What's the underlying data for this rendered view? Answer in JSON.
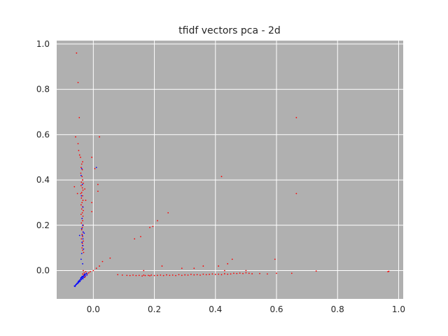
{
  "chart_data": {
    "type": "scatter",
    "title": "tfidf vectors pca - 2d",
    "xlabel": "",
    "ylabel": "",
    "xlim": [
      -0.12,
      1.015
    ],
    "ylim": [
      -0.125,
      1.015
    ],
    "grid": true,
    "legend": "none",
    "background_color": "#b0b0b0",
    "grid_color": "#ffffff",
    "x_ticks": [
      0.0,
      0.2,
      0.4,
      0.6,
      0.8,
      1.0
    ],
    "x_tick_labels": [
      "0.0",
      "0.2",
      "0.4",
      "0.6",
      "0.8",
      "1.0"
    ],
    "y_ticks": [
      0.0,
      0.2,
      0.4,
      0.6,
      0.8,
      1.0
    ],
    "y_tick_labels": [
      "0.0",
      "0.2",
      "0.4",
      "0.6",
      "0.8",
      "1.0"
    ],
    "series": [
      {
        "color": "#ff0000",
        "points": [
          [
            -0.055,
            0.96
          ],
          [
            -0.05,
            0.83
          ],
          [
            -0.046,
            0.675
          ],
          [
            -0.058,
            0.59
          ],
          [
            -0.05,
            0.56
          ],
          [
            -0.048,
            0.53
          ],
          [
            -0.045,
            0.51
          ],
          [
            -0.042,
            0.5
          ],
          [
            -0.035,
            0.48
          ],
          [
            -0.038,
            0.47
          ],
          [
            -0.04,
            0.455
          ],
          [
            -0.036,
            0.445
          ],
          [
            -0.041,
            0.43
          ],
          [
            -0.037,
            0.415
          ],
          [
            -0.035,
            0.4
          ],
          [
            -0.039,
            0.39
          ],
          [
            -0.033,
            0.385
          ],
          [
            -0.04,
            0.375
          ],
          [
            -0.036,
            0.365
          ],
          [
            -0.034,
            0.355
          ],
          [
            -0.038,
            0.345
          ],
          [
            -0.041,
            0.34
          ],
          [
            -0.035,
            0.33
          ],
          [
            -0.039,
            0.32
          ],
          [
            -0.034,
            0.31
          ],
          [
            -0.037,
            0.3
          ],
          [
            -0.04,
            0.29
          ],
          [
            -0.035,
            0.282
          ],
          [
            -0.038,
            0.272
          ],
          [
            -0.033,
            0.265
          ],
          [
            -0.036,
            0.255
          ],
          [
            -0.04,
            0.248
          ],
          [
            -0.034,
            0.24
          ],
          [
            -0.037,
            0.23
          ],
          [
            -0.035,
            0.22
          ],
          [
            -0.039,
            0.21
          ],
          [
            -0.033,
            0.2
          ],
          [
            -0.036,
            0.19
          ],
          [
            -0.038,
            0.18
          ],
          [
            -0.034,
            0.17
          ],
          [
            -0.037,
            0.16
          ],
          [
            -0.035,
            0.15
          ],
          [
            -0.039,
            0.14
          ],
          [
            -0.033,
            0.13
          ],
          [
            -0.036,
            0.12
          ],
          [
            -0.034,
            0.11
          ],
          [
            -0.037,
            0.1
          ],
          [
            -0.035,
            0.09
          ],
          [
            -0.032,
            0.08
          ],
          [
            -0.062,
            0.37
          ],
          [
            -0.052,
            0.34
          ],
          [
            -0.028,
            0.36
          ],
          [
            -0.025,
            0.31
          ],
          [
            -0.005,
            0.5
          ],
          [
            -0.005,
            0.3
          ],
          [
            -0.005,
            0.26
          ],
          [
            0.015,
            0.38
          ],
          [
            0.015,
            0.35
          ],
          [
            0.02,
            0.59
          ],
          [
            0.005,
            0.45
          ],
          [
            -0.03,
            -0.01
          ],
          [
            -0.032,
            -0.02
          ],
          [
            -0.028,
            -0.03
          ],
          [
            -0.035,
            -0.015
          ],
          [
            -0.025,
            -0.005
          ],
          [
            -0.033,
            0.0
          ],
          [
            -0.027,
            -0.025
          ],
          [
            -0.02,
            -0.015
          ],
          [
            -0.015,
            -0.01
          ],
          [
            -0.01,
            -0.005
          ],
          [
            0.0,
            0.0
          ],
          [
            0.01,
            0.01
          ],
          [
            0.02,
            0.02
          ],
          [
            0.03,
            0.04
          ],
          [
            0.055,
            0.055
          ],
          [
            0.08,
            -0.018
          ],
          [
            0.095,
            -0.02
          ],
          [
            0.11,
            -0.021
          ],
          [
            0.12,
            -0.022
          ],
          [
            0.13,
            -0.02
          ],
          [
            0.14,
            -0.022
          ],
          [
            0.15,
            -0.021
          ],
          [
            0.16,
            -0.024
          ],
          [
            0.165,
            -0.02
          ],
          [
            0.17,
            -0.022
          ],
          [
            0.18,
            -0.021
          ],
          [
            0.185,
            -0.023
          ],
          [
            0.19,
            -0.02
          ],
          [
            0.2,
            -0.022
          ],
          [
            0.21,
            -0.021
          ],
          [
            0.22,
            -0.02
          ],
          [
            0.23,
            -0.022
          ],
          [
            0.24,
            -0.019
          ],
          [
            0.25,
            -0.021
          ],
          [
            0.26,
            -0.02
          ],
          [
            0.27,
            -0.022
          ],
          [
            0.28,
            -0.018
          ],
          [
            0.29,
            -0.021
          ],
          [
            0.3,
            -0.019
          ],
          [
            0.31,
            -0.02
          ],
          [
            0.32,
            -0.017
          ],
          [
            0.33,
            -0.019
          ],
          [
            0.34,
            -0.018
          ],
          [
            0.35,
            -0.02
          ],
          [
            0.36,
            -0.016
          ],
          [
            0.37,
            -0.018
          ],
          [
            0.38,
            -0.017
          ],
          [
            0.39,
            -0.015
          ],
          [
            0.4,
            -0.017
          ],
          [
            0.41,
            -0.016
          ],
          [
            0.42,
            -0.018
          ],
          [
            0.43,
            -0.014
          ],
          [
            0.44,
            -0.016
          ],
          [
            0.45,
            -0.015
          ],
          [
            0.46,
            -0.012
          ],
          [
            0.47,
            -0.013
          ],
          [
            0.48,
            -0.011
          ],
          [
            0.49,
            -0.013
          ],
          [
            0.5,
            -0.01
          ],
          [
            0.51,
            -0.012
          ],
          [
            0.52,
            -0.014
          ],
          [
            0.545,
            -0.013
          ],
          [
            0.57,
            -0.015
          ],
          [
            0.6,
            -0.012
          ],
          [
            0.65,
            -0.012
          ],
          [
            0.73,
            -0.002
          ],
          [
            0.965,
            -0.005
          ],
          [
            0.968,
            -0.003
          ],
          [
            0.135,
            0.14
          ],
          [
            0.155,
            0.15
          ],
          [
            0.185,
            0.19
          ],
          [
            0.195,
            0.195
          ],
          [
            0.21,
            0.22
          ],
          [
            0.245,
            0.255
          ],
          [
            0.42,
            0.415
          ],
          [
            0.665,
            0.675
          ],
          [
            0.665,
            0.34
          ],
          [
            0.595,
            0.05
          ],
          [
            0.455,
            0.05
          ],
          [
            0.44,
            0.03
          ],
          [
            0.36,
            0.02
          ],
          [
            0.33,
            0.01
          ],
          [
            0.29,
            0.01
          ],
          [
            0.225,
            0.02
          ],
          [
            0.165,
            0.0
          ],
          [
            0.43,
            0.0
          ],
          [
            0.41,
            0.02
          ],
          [
            0.5,
            0.0
          ]
        ]
      },
      {
        "color": "#0000ff",
        "points": [
          [
            -0.06,
            -0.07
          ],
          [
            -0.058,
            -0.065
          ],
          [
            -0.055,
            -0.06
          ],
          [
            -0.053,
            -0.055
          ],
          [
            -0.05,
            -0.05
          ],
          [
            -0.048,
            -0.046
          ],
          [
            -0.045,
            -0.042
          ],
          [
            -0.042,
            -0.038
          ],
          [
            -0.04,
            -0.035
          ],
          [
            -0.038,
            -0.03
          ],
          [
            -0.035,
            -0.028
          ],
          [
            -0.033,
            -0.025
          ],
          [
            -0.03,
            -0.022
          ],
          [
            -0.028,
            -0.018
          ],
          [
            -0.025,
            -0.015
          ],
          [
            -0.022,
            -0.012
          ],
          [
            -0.057,
            -0.062
          ],
          [
            -0.052,
            -0.058
          ],
          [
            -0.047,
            -0.05
          ],
          [
            -0.043,
            -0.044
          ],
          [
            -0.039,
            -0.04
          ],
          [
            -0.036,
            -0.034
          ],
          [
            -0.031,
            -0.03
          ],
          [
            -0.026,
            -0.024
          ],
          [
            -0.062,
            -0.068
          ],
          [
            -0.049,
            -0.054
          ],
          [
            -0.044,
            -0.048
          ],
          [
            -0.034,
            -0.036
          ],
          [
            -0.041,
            -0.032
          ],
          [
            -0.037,
            -0.026
          ],
          [
            -0.029,
            -0.016
          ],
          [
            -0.021,
            -0.02
          ],
          [
            -0.038,
            0.45
          ],
          [
            -0.04,
            0.42
          ],
          [
            -0.036,
            0.38
          ],
          [
            -0.039,
            0.33
          ],
          [
            -0.034,
            0.28
          ],
          [
            -0.037,
            0.23
          ],
          [
            -0.035,
            0.2
          ],
          [
            -0.038,
            0.185
          ],
          [
            -0.033,
            0.17
          ],
          [
            -0.036,
            0.155
          ],
          [
            -0.034,
            0.14
          ],
          [
            -0.037,
            0.125
          ],
          [
            -0.035,
            0.11
          ],
          [
            -0.032,
            0.095
          ],
          [
            -0.038,
            0.075
          ],
          [
            -0.045,
            0.155
          ],
          [
            -0.03,
            0.165
          ],
          [
            0.01,
            0.455
          ],
          [
            -0.04,
            0.05
          ],
          [
            -0.035,
            0.03
          ]
        ]
      }
    ]
  }
}
